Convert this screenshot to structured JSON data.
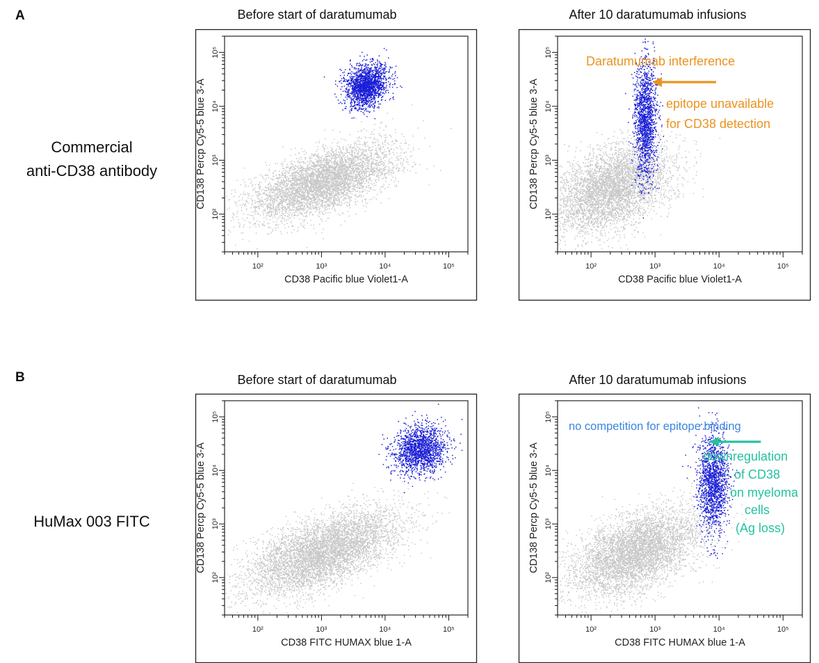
{
  "figure": {
    "panel_a": "A",
    "panel_b": "B",
    "row_a_label": [
      "Commercial",
      "anti-CD38 antibody"
    ],
    "row_b_label": "HuMax 003 FITC",
    "col_before": "Before start of daratumumab",
    "col_after": "After 10 daratumumab infusions"
  },
  "colors": {
    "background_events": "#c8c8c8",
    "plasma_cells": "#1a1fd6",
    "orange_annotation": "#ea9320",
    "blue_annotation": "#3a86e0",
    "teal_annotation": "#25c2a0"
  },
  "chart_data": [
    {
      "type": "scatter",
      "panel": "A",
      "column": "Before start of daratumumab",
      "xlabel": "CD38 Pacific blue Violet1-A",
      "ylabel": "CD138 Percp Cy5-5 blue 3-A",
      "x_scale": "log",
      "y_scale": "log",
      "xlim": [
        30,
        200000
      ],
      "ylim": [
        20,
        200000
      ],
      "xticks": [
        {
          "v": 100,
          "label": "10²"
        },
        {
          "v": 1000,
          "label": "10³"
        },
        {
          "v": 10000,
          "label": "10⁴"
        },
        {
          "v": 100000,
          "label": "10⁵"
        }
      ],
      "yticks": [
        {
          "v": 100,
          "label": "10²"
        },
        {
          "v": 1000,
          "label": "10³"
        },
        {
          "v": 10000,
          "label": "10⁴"
        },
        {
          "v": 100000,
          "label": "10⁵"
        }
      ],
      "series": [
        {
          "role": "background",
          "color": "#c8c8c8",
          "center": [
            1000,
            400
          ],
          "spread_decades": [
            0.55,
            0.35
          ],
          "corr": 0.6,
          "n": 5000
        },
        {
          "role": "myeloma",
          "color": "#1a1fd6",
          "center": [
            5000,
            25000
          ],
          "spread_decades": [
            0.16,
            0.2
          ],
          "corr": 0.2,
          "n": 1800
        }
      ],
      "annotations": []
    },
    {
      "type": "scatter",
      "panel": "A",
      "column": "After 10 daratumumab infusions",
      "xlabel": "CD38 Pacific blue Violet1-A",
      "ylabel": "CD138 Percp Cy5-5 blue 3-A",
      "x_scale": "log",
      "y_scale": "log",
      "xlim": [
        30,
        200000
      ],
      "ylim": [
        20,
        200000
      ],
      "xticks": [
        {
          "v": 100,
          "label": "10²"
        },
        {
          "v": 1000,
          "label": "10³"
        },
        {
          "v": 10000,
          "label": "10⁴"
        },
        {
          "v": 100000,
          "label": "10⁵"
        }
      ],
      "yticks": [
        {
          "v": 100,
          "label": "10²"
        },
        {
          "v": 1000,
          "label": "10³"
        },
        {
          "v": 10000,
          "label": "10⁴"
        },
        {
          "v": 100000,
          "label": "10⁵"
        }
      ],
      "series": [
        {
          "role": "background",
          "color": "#c8c8c8",
          "center": [
            200,
            300
          ],
          "spread_decades": [
            0.45,
            0.4
          ],
          "corr": 0.4,
          "n": 4500
        },
        {
          "role": "myeloma",
          "color": "#1a1fd6",
          "center": [
            700,
            6000
          ],
          "spread_decades": [
            0.09,
            0.55
          ],
          "corr": 0.0,
          "n": 1500
        }
      ],
      "annotations": [
        {
          "text": "Daratumumab interference",
          "color": "#ea9320"
        },
        {
          "text": "epitope unavailable",
          "color": "#ea9320"
        },
        {
          "text": "for CD38 detection",
          "color": "#ea9320"
        }
      ],
      "arrow": {
        "color": "#ea9320",
        "from": [
          9000,
          60000
        ],
        "to": [
          900,
          60000
        ]
      }
    },
    {
      "type": "scatter",
      "panel": "B",
      "column": "Before start of daratumumab",
      "xlabel": "CD38 FITC HUMAX blue 1-A",
      "ylabel": "CD138 Percp Cy5-5 blue 3-A",
      "x_scale": "log",
      "y_scale": "log",
      "xlim": [
        30,
        200000
      ],
      "ylim": [
        20,
        200000
      ],
      "xticks": [
        {
          "v": 100,
          "label": "10²"
        },
        {
          "v": 1000,
          "label": "10³"
        },
        {
          "v": 10000,
          "label": "10⁴"
        },
        {
          "v": 100000,
          "label": "10⁵"
        }
      ],
      "yticks": [
        {
          "v": 100,
          "label": "10²"
        },
        {
          "v": 1000,
          "label": "10³"
        },
        {
          "v": 10000,
          "label": "10⁴"
        },
        {
          "v": 100000,
          "label": "10⁵"
        }
      ],
      "series": [
        {
          "role": "background",
          "color": "#c8c8c8",
          "center": [
            1000,
            300
          ],
          "spread_decades": [
            0.6,
            0.4
          ],
          "corr": 0.6,
          "n": 5500
        },
        {
          "role": "myeloma",
          "color": "#1a1fd6",
          "center": [
            35000,
            25000
          ],
          "spread_decades": [
            0.2,
            0.22
          ],
          "corr": 0.1,
          "n": 1600
        }
      ],
      "annotations": []
    },
    {
      "type": "scatter",
      "panel": "B",
      "column": "After 10 daratumumab infusions",
      "xlabel": "CD38 FITC HUMAX blue 1-A",
      "ylabel": "CD138 Percp Cy5-5 blue 3-A",
      "x_scale": "log",
      "y_scale": "log",
      "xlim": [
        30,
        200000
      ],
      "ylim": [
        20,
        200000
      ],
      "xticks": [
        {
          "v": 100,
          "label": "10²"
        },
        {
          "v": 1000,
          "label": "10³"
        },
        {
          "v": 10000,
          "label": "10⁴"
        },
        {
          "v": 100000,
          "label": "10⁵"
        }
      ],
      "yticks": [
        {
          "v": 100,
          "label": "10²"
        },
        {
          "v": 1000,
          "label": "10³"
        },
        {
          "v": 10000,
          "label": "10⁴"
        },
        {
          "v": 100000,
          "label": "10⁵"
        }
      ],
      "series": [
        {
          "role": "background",
          "color": "#c8c8c8",
          "center": [
            500,
            300
          ],
          "spread_decades": [
            0.5,
            0.4
          ],
          "corr": 0.5,
          "n": 5000
        },
        {
          "role": "myeloma",
          "color": "#1a1fd6",
          "center": [
            8000,
            6000
          ],
          "spread_decades": [
            0.12,
            0.45
          ],
          "corr": 0.0,
          "n": 1500
        }
      ],
      "annotations": [
        {
          "text": "no competition for epitope binding",
          "color": "#3a86e0"
        },
        {
          "text": "downregulation",
          "color": "#25c2a0"
        },
        {
          "text": "of CD38",
          "color": "#25c2a0"
        },
        {
          "text": "on myeloma",
          "color": "#25c2a0"
        },
        {
          "text": "cells",
          "color": "#25c2a0"
        },
        {
          "text": "(Ag loss)",
          "color": "#25c2a0"
        }
      ],
      "arrow": {
        "color": "#25c2a0",
        "from": [
          45000,
          70000
        ],
        "to": [
          7000,
          70000
        ]
      }
    }
  ]
}
